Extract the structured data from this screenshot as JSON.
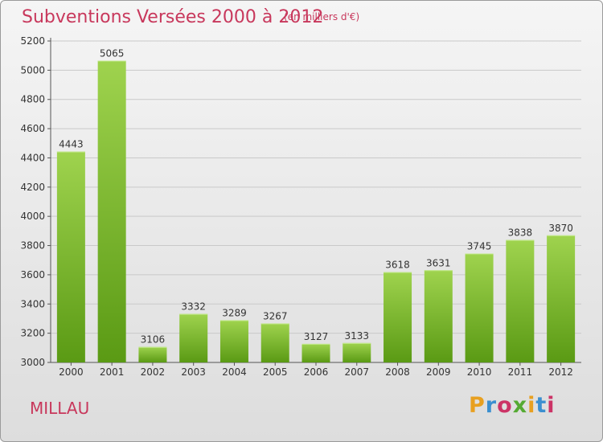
{
  "header": {
    "title": "Subventions Versées 2000 à 2012",
    "subtitle": "(en milliers d'€)"
  },
  "footer": {
    "city": "MILLAU",
    "logo_text": "Proxiti"
  },
  "colors": {
    "bar_top": "#9fd34e",
    "bar_bottom": "#5a9a14",
    "title": "#c8385c"
  },
  "chart_data": {
    "type": "bar",
    "title": "Subventions Versées 2000 à 2012",
    "subtitle": "(en milliers d'€)",
    "xlabel": "",
    "ylabel": "",
    "categories": [
      "2000",
      "2001",
      "2002",
      "2003",
      "2004",
      "2005",
      "2006",
      "2007",
      "2008",
      "2009",
      "2010",
      "2011",
      "2012"
    ],
    "values": [
      4443,
      5065,
      3106,
      3332,
      3289,
      3267,
      3127,
      3133,
      3618,
      3631,
      3745,
      3838,
      3870
    ],
    "ylim": [
      3000,
      5200
    ],
    "yticks": [
      3000,
      3200,
      3400,
      3600,
      3800,
      4000,
      4200,
      4400,
      4600,
      4800,
      5000,
      5200
    ],
    "grid": true,
    "legend": "none"
  }
}
